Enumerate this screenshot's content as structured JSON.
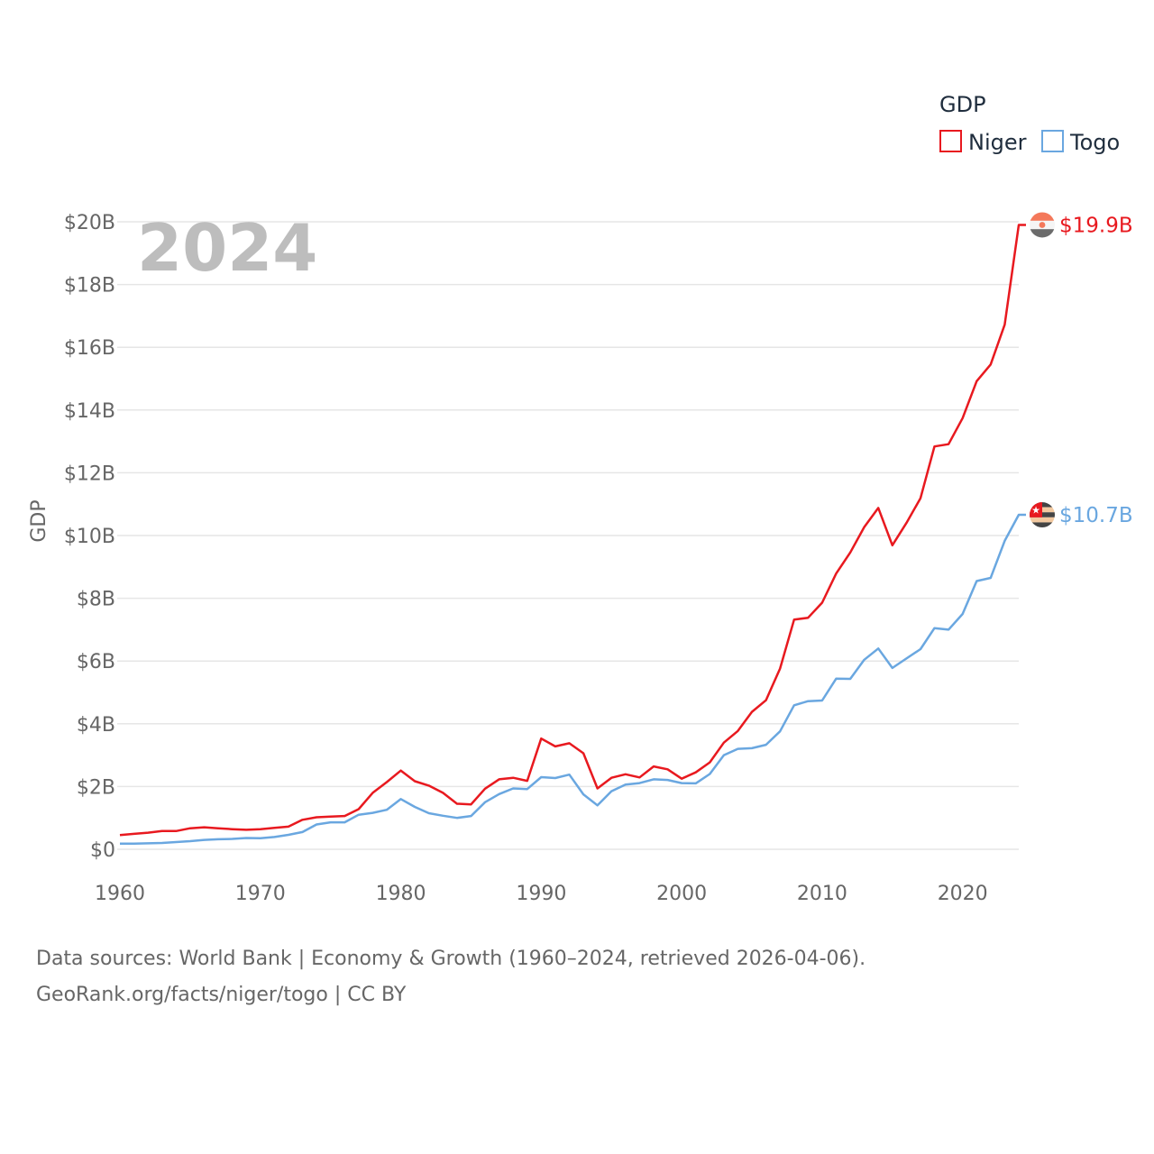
{
  "chart_data": {
    "type": "line",
    "title": "",
    "year_label": "2024",
    "ylabel": "GDP",
    "xlabel": "",
    "xlim": [
      1960,
      2024
    ],
    "ylim": [
      0,
      20
    ],
    "x_ticks": [
      1960,
      1970,
      1980,
      1990,
      2000,
      2010,
      2020
    ],
    "y_ticks": [
      0,
      2,
      4,
      6,
      8,
      10,
      12,
      14,
      16,
      18,
      20
    ],
    "y_tick_labels": [
      "$0",
      "$2B",
      "$4B",
      "$6B",
      "$8B",
      "$10B",
      "$12B",
      "$14B",
      "$16B",
      "$18B",
      "$20B"
    ],
    "legend": {
      "title": "GDP",
      "position": "top-right"
    },
    "x": [
      1960,
      1961,
      1962,
      1963,
      1964,
      1965,
      1966,
      1967,
      1968,
      1969,
      1970,
      1971,
      1972,
      1973,
      1974,
      1975,
      1976,
      1977,
      1978,
      1979,
      1980,
      1981,
      1982,
      1983,
      1984,
      1985,
      1986,
      1987,
      1988,
      1989,
      1990,
      1991,
      1992,
      1993,
      1994,
      1995,
      1996,
      1997,
      1998,
      1999,
      2000,
      2001,
      2002,
      2003,
      2004,
      2005,
      2006,
      2007,
      2008,
      2009,
      2010,
      2011,
      2012,
      2013,
      2014,
      2015,
      2016,
      2017,
      2018,
      2019,
      2020,
      2021,
      2022,
      2023,
      2024
    ],
    "series": [
      {
        "name": "Niger",
        "color": "#e8191f",
        "end_label": "$19.9B",
        "flag": "niger",
        "values": [
          0.45,
          0.49,
          0.53,
          0.58,
          0.58,
          0.67,
          0.7,
          0.67,
          0.64,
          0.62,
          0.64,
          0.68,
          0.72,
          0.94,
          1.02,
          1.04,
          1.06,
          1.28,
          1.8,
          2.14,
          2.51,
          2.17,
          2.03,
          1.8,
          1.45,
          1.43,
          1.93,
          2.23,
          2.28,
          2.18,
          3.53,
          3.28,
          3.38,
          3.06,
          1.94,
          2.28,
          2.39,
          2.29,
          2.64,
          2.55,
          2.25,
          2.45,
          2.77,
          3.4,
          3.77,
          4.38,
          4.75,
          5.76,
          7.32,
          7.38,
          7.86,
          8.79,
          9.46,
          10.27,
          10.88,
          9.69,
          10.4,
          11.19,
          12.84,
          12.91,
          13.74,
          14.92,
          15.45,
          16.72,
          19.9
        ]
      },
      {
        "name": "Togo",
        "color": "#6aa7e0",
        "end_label": "$10.7B",
        "flag": "togo",
        "values": [
          0.18,
          0.18,
          0.19,
          0.2,
          0.23,
          0.26,
          0.3,
          0.32,
          0.33,
          0.36,
          0.35,
          0.39,
          0.46,
          0.55,
          0.79,
          0.86,
          0.86,
          1.1,
          1.16,
          1.26,
          1.6,
          1.35,
          1.15,
          1.07,
          1.0,
          1.06,
          1.5,
          1.76,
          1.94,
          1.92,
          2.3,
          2.27,
          2.38,
          1.75,
          1.4,
          1.85,
          2.06,
          2.11,
          2.23,
          2.21,
          2.11,
          2.1,
          2.4,
          3.0,
          3.2,
          3.22,
          3.33,
          3.76,
          4.59,
          4.72,
          4.74,
          5.44,
          5.43,
          6.04,
          6.4,
          5.78,
          6.08,
          6.38,
          7.05,
          7.0,
          7.5,
          8.55,
          8.65,
          9.83,
          10.66
        ]
      }
    ]
  },
  "source_line1": "Data sources: World Bank | Economy & Growth (1960–2024, retrieved 2026-04-06).",
  "source_line2": "GeoRank.org/facts/niger/togo | CC BY"
}
